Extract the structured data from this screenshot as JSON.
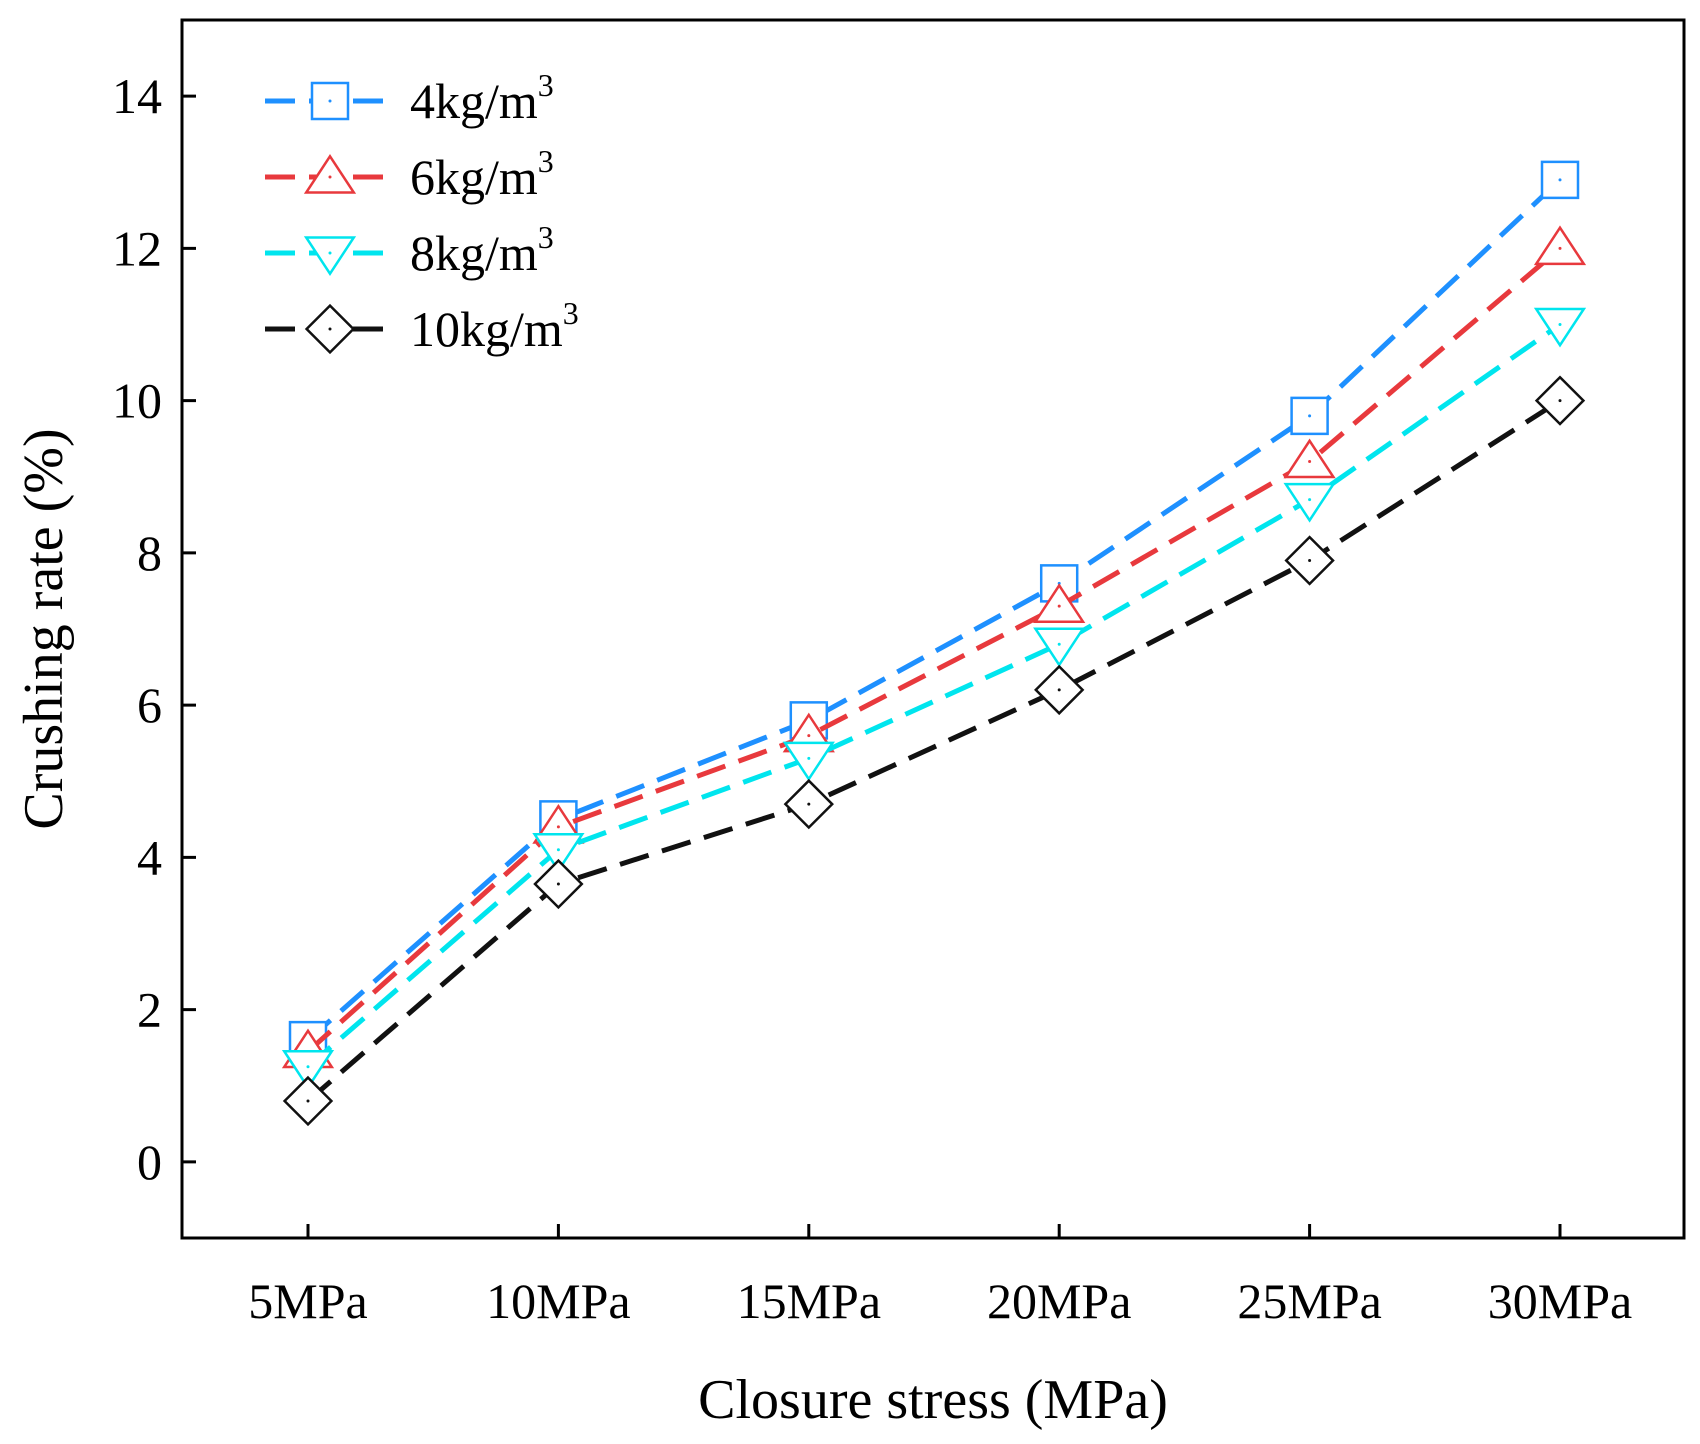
{
  "chart_data": {
    "type": "line",
    "title": "",
    "xlabel": "Closure stress (MPa)",
    "ylabel": "Crushing rate (%)",
    "categories": [
      "5MPa",
      "10MPa",
      "15MPa",
      "20MPa",
      "25MPa",
      "30MPa"
    ],
    "ylim": [
      -1,
      15
    ],
    "yticks": [
      0,
      2,
      4,
      6,
      8,
      10,
      12,
      14
    ],
    "legend_position": "top-left",
    "series": [
      {
        "name": "4kg/m",
        "sup": "3",
        "marker": "square",
        "color": "#1e90ff",
        "values": [
          1.6,
          4.5,
          5.8,
          7.6,
          9.8,
          12.9
        ]
      },
      {
        "name": "6kg/m",
        "sup": "3",
        "marker": "triangle-up",
        "color": "#e8393d",
        "values": [
          1.45,
          4.4,
          5.6,
          7.3,
          9.2,
          12.0
        ]
      },
      {
        "name": "8kg/m",
        "sup": "3",
        "marker": "triangle-down",
        "color": "#00e5ee",
        "values": [
          1.25,
          4.1,
          5.3,
          6.8,
          8.7,
          11.0
        ]
      },
      {
        "name": "10kg/m",
        "sup": "3",
        "marker": "diamond",
        "color": "#111111",
        "values": [
          0.8,
          3.65,
          4.7,
          6.2,
          7.9,
          10.0
        ]
      }
    ]
  }
}
